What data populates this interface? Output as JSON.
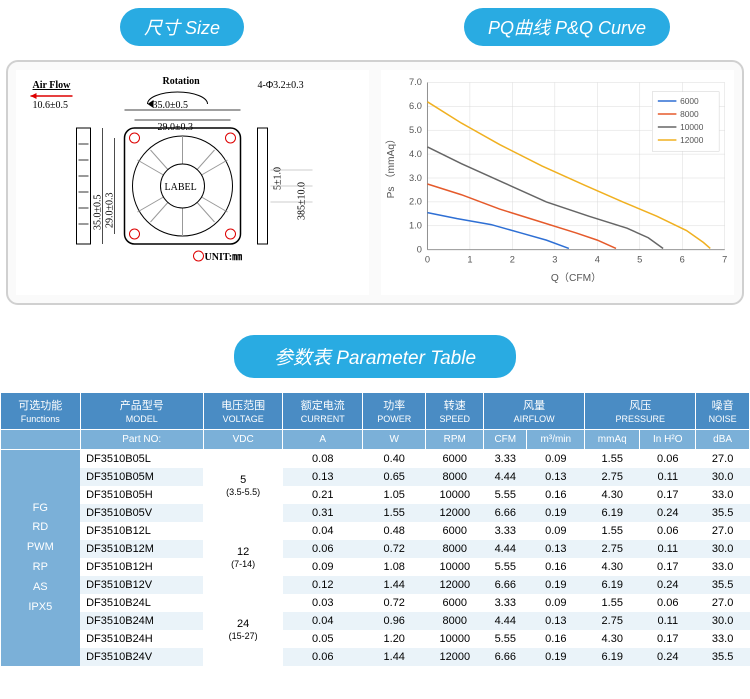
{
  "headers": {
    "size": "尺寸 Size",
    "pq": "PQ曲线 P&Q Curve",
    "param": "参数表 Parameter Table"
  },
  "diagram": {
    "airflow_label": "Air Flow",
    "airflow_dim": "10.6±0.5",
    "rotation_label": "Rotation",
    "top_hole": "4-Φ3.2±0.3",
    "width_outer": "35.0±0.5",
    "width_inner": "29.0±0.3",
    "height_outer": "35.0±0.5",
    "height_inner": "29.0±0.3",
    "thickness": "5±1.0",
    "lead_len": "385±10.0",
    "label_text": "LABEL",
    "unit_text": "UNIT:㎜"
  },
  "chart": {
    "xlabel": "Q（CFM）",
    "ylabel": "Ps （mmAq）",
    "xlim": [
      0,
      7
    ],
    "ylim": [
      0,
      7
    ],
    "xtick": [
      0,
      1,
      2,
      3,
      4,
      5,
      6,
      7
    ],
    "ytick": [
      "0",
      "1.0",
      "2.0",
      "3.0",
      "4.0",
      "5.0",
      "6.0",
      "7.0"
    ],
    "grid_color": "#d8d8d8",
    "bg": "#ffffff",
    "series": [
      {
        "name": "6000",
        "color": "#2e6fd4",
        "pts": [
          [
            0,
            1.55
          ],
          [
            0.7,
            1.3
          ],
          [
            1.5,
            1.05
          ],
          [
            2.2,
            0.7
          ],
          [
            2.8,
            0.4
          ],
          [
            3.33,
            0.05
          ]
        ]
      },
      {
        "name": "8000",
        "color": "#e55a2b",
        "pts": [
          [
            0,
            2.75
          ],
          [
            0.8,
            2.3
          ],
          [
            1.7,
            1.7
          ],
          [
            2.6,
            1.2
          ],
          [
            3.5,
            0.7
          ],
          [
            4.0,
            0.4
          ],
          [
            4.44,
            0.05
          ]
        ]
      },
      {
        "name": "10000",
        "color": "#666666",
        "pts": [
          [
            0,
            4.3
          ],
          [
            0.8,
            3.6
          ],
          [
            1.8,
            2.8
          ],
          [
            2.8,
            2.0
          ],
          [
            3.8,
            1.4
          ],
          [
            4.7,
            0.9
          ],
          [
            5.2,
            0.5
          ],
          [
            5.55,
            0.05
          ]
        ]
      },
      {
        "name": "12000",
        "color": "#f0b020",
        "pts": [
          [
            0,
            6.19
          ],
          [
            0.8,
            5.3
          ],
          [
            1.7,
            4.4
          ],
          [
            2.7,
            3.5
          ],
          [
            3.7,
            2.7
          ],
          [
            4.6,
            2.0
          ],
          [
            5.4,
            1.4
          ],
          [
            6.1,
            0.8
          ],
          [
            6.5,
            0.3
          ],
          [
            6.66,
            0.05
          ]
        ]
      }
    ]
  },
  "table": {
    "head1": [
      {
        "t": "可选功能",
        "s": "Functions"
      },
      {
        "t": "产品型号",
        "s": "MODEL"
      },
      {
        "t": "电压范围",
        "s": "VOLTAGE"
      },
      {
        "t": "额定电流",
        "s": "CURRENT"
      },
      {
        "t": "功率",
        "s": "POWER"
      },
      {
        "t": "转速",
        "s": "SPEED"
      },
      {
        "t": "风量",
        "s": "AIRFLOW",
        "span": 2
      },
      {
        "t": "风压",
        "s": "PRESSURE",
        "span": 2
      },
      {
        "t": "噪音",
        "s": "NOISE"
      }
    ],
    "head2": [
      "Part NO:",
      "VDC",
      "A",
      "W",
      "RPM",
      "CFM",
      "m³/min",
      "mmAq",
      "In H²O",
      "dBA"
    ],
    "functions": [
      "FG",
      "RD",
      "PWM",
      "RP",
      "AS",
      "IPX5"
    ],
    "groups": [
      {
        "volt": "5",
        "range": "(3.5-5.5)",
        "rows": [
          [
            "DF3510B05L",
            "0.08",
            "0.40",
            "6000",
            "3.33",
            "0.09",
            "1.55",
            "0.06",
            "27.0"
          ],
          [
            "DF3510B05M",
            "0.13",
            "0.65",
            "8000",
            "4.44",
            "0.13",
            "2.75",
            "0.11",
            "30.0"
          ],
          [
            "DF3510B05H",
            "0.21",
            "1.05",
            "10000",
            "5.55",
            "0.16",
            "4.30",
            "0.17",
            "33.0"
          ],
          [
            "DF3510B05V",
            "0.31",
            "1.55",
            "12000",
            "6.66",
            "0.19",
            "6.19",
            "0.24",
            "35.5"
          ]
        ]
      },
      {
        "volt": "12",
        "range": "(7-14)",
        "rows": [
          [
            "DF3510B12L",
            "0.04",
            "0.48",
            "6000",
            "3.33",
            "0.09",
            "1.55",
            "0.06",
            "27.0"
          ],
          [
            "DF3510B12M",
            "0.06",
            "0.72",
            "8000",
            "4.44",
            "0.13",
            "2.75",
            "0.11",
            "30.0"
          ],
          [
            "DF3510B12H",
            "0.09",
            "1.08",
            "10000",
            "5.55",
            "0.16",
            "4.30",
            "0.17",
            "33.0"
          ],
          [
            "DF3510B12V",
            "0.12",
            "1.44",
            "12000",
            "6.66",
            "0.19",
            "6.19",
            "0.24",
            "35.5"
          ]
        ]
      },
      {
        "volt": "24",
        "range": "(15-27)",
        "rows": [
          [
            "DF3510B24L",
            "0.03",
            "0.72",
            "6000",
            "3.33",
            "0.09",
            "1.55",
            "0.06",
            "27.0"
          ],
          [
            "DF3510B24M",
            "0.04",
            "0.96",
            "8000",
            "4.44",
            "0.13",
            "2.75",
            "0.11",
            "30.0"
          ],
          [
            "DF3510B24H",
            "0.05",
            "1.20",
            "10000",
            "5.55",
            "0.16",
            "4.30",
            "0.17",
            "33.0"
          ],
          [
            "DF3510B24V",
            "0.06",
            "1.44",
            "12000",
            "6.66",
            "0.19",
            "6.19",
            "0.24",
            "35.5"
          ]
        ]
      }
    ]
  }
}
